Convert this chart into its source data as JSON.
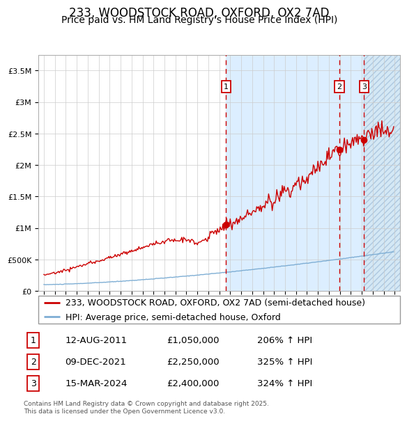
{
  "title": "233, WOODSTOCK ROAD, OXFORD, OX2 7AD",
  "subtitle": "Price paid vs. HM Land Registry's House Price Index (HPI)",
  "ylim": [
    0,
    3750000
  ],
  "xlim_start": 1994.5,
  "xlim_end": 2027.5,
  "background_color": "#ffffff",
  "plot_bg_color": "#ffffff",
  "grid_color": "#cccccc",
  "sale_color": "#cc0000",
  "hpi_color": "#7eaed4",
  "shaded_region_color": "#dceeff",
  "hatch_region_color": "#d4e8f5",
  "title_fontsize": 12,
  "subtitle_fontsize": 10,
  "tick_fontsize": 8,
  "legend_fontsize": 9,
  "yticks": [
    0,
    500000,
    1000000,
    1500000,
    2000000,
    2500000,
    3000000,
    3500000
  ],
  "ytick_labels": [
    "£0",
    "£500K",
    "£1M",
    "£1.5M",
    "£2M",
    "£2.5M",
    "£3M",
    "£3.5M"
  ],
  "sale_events": [
    {
      "num": 1,
      "date_label": "12-AUG-2011",
      "x": 2011.62,
      "price": 1050000,
      "hpi_pct": "206%"
    },
    {
      "num": 2,
      "date_label": "09-DEC-2021",
      "x": 2021.94,
      "price": 2250000,
      "hpi_pct": "325%"
    },
    {
      "num": 3,
      "date_label": "15-MAR-2024",
      "x": 2024.21,
      "price": 2400000,
      "hpi_pct": "324%"
    }
  ],
  "shaded_start": 2011.62,
  "hatch_start": 2024.21,
  "legend_entries": [
    "233, WOODSTOCK ROAD, OXFORD, OX2 7AD (semi-detached house)",
    "HPI: Average price, semi-detached house, Oxford"
  ],
  "footnote": "Contains HM Land Registry data © Crown copyright and database right 2025.\nThis data is licensed under the Open Government Licence v3.0."
}
